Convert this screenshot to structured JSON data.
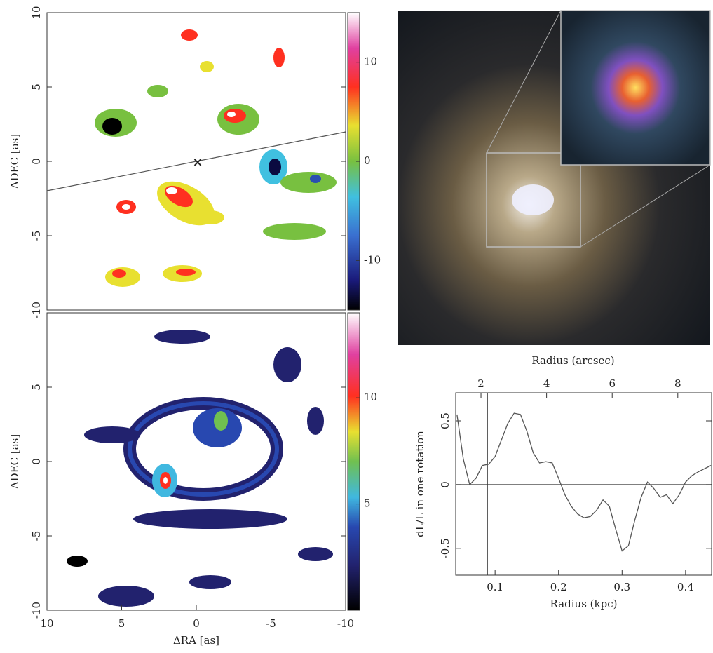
{
  "chart_data": [
    {
      "type": "map",
      "ylabel": "ΔDEC [as]",
      "ylim": [
        -10,
        10
      ],
      "yticks": [
        -10,
        -5,
        0,
        5,
        10
      ],
      "clim": [
        -15,
        15
      ],
      "cticks": [
        -10,
        0,
        10
      ]
    },
    {
      "type": "map",
      "xlabel": "ΔRA [as]",
      "ylabel": "ΔDEC [as]",
      "xlim": [
        10,
        -10
      ],
      "xticks": [
        10,
        5,
        0,
        -5,
        -10
      ],
      "ylim": [
        -10,
        10
      ],
      "yticks": [
        -10,
        -5,
        0,
        5
      ],
      "clim": [
        0,
        14
      ],
      "cticks": [
        5,
        10
      ]
    },
    {
      "type": "line",
      "xlabel": "Radius (kpc)",
      "x2label": "Radius (arcsec)",
      "ylabel": "dL/L in one rotation",
      "xlim": [
        0.038,
        0.441
      ],
      "xticks": [
        0.1,
        0.2,
        0.3,
        0.4
      ],
      "x2lim": [
        1.23,
        9.03
      ],
      "x2ticks": [
        2,
        4,
        6,
        8
      ],
      "ylim": [
        -0.71,
        0.72
      ],
      "yticks": [
        -0.5,
        0,
        0.5
      ],
      "vline": 0.088,
      "color": "#555555",
      "x": [
        0.04,
        0.05,
        0.06,
        0.07,
        0.08,
        0.09,
        0.1,
        0.11,
        0.12,
        0.13,
        0.14,
        0.15,
        0.16,
        0.17,
        0.18,
        0.19,
        0.2,
        0.21,
        0.22,
        0.23,
        0.24,
        0.25,
        0.26,
        0.27,
        0.28,
        0.29,
        0.3,
        0.31,
        0.32,
        0.33,
        0.34,
        0.35,
        0.36,
        0.37,
        0.38,
        0.39,
        0.4,
        0.41,
        0.42,
        0.44
      ],
      "values": [
        0.55,
        0.2,
        0.0,
        0.05,
        0.15,
        0.16,
        0.22,
        0.35,
        0.48,
        0.56,
        0.55,
        0.42,
        0.25,
        0.17,
        0.18,
        0.17,
        0.05,
        -0.08,
        -0.17,
        -0.23,
        -0.26,
        -0.25,
        -0.2,
        -0.12,
        -0.17,
        -0.35,
        -0.52,
        -0.48,
        -0.28,
        -0.1,
        0.02,
        -0.03,
        -0.1,
        -0.08,
        -0.15,
        -0.08,
        0.02,
        0.07,
        0.1,
        0.15
      ]
    }
  ]
}
